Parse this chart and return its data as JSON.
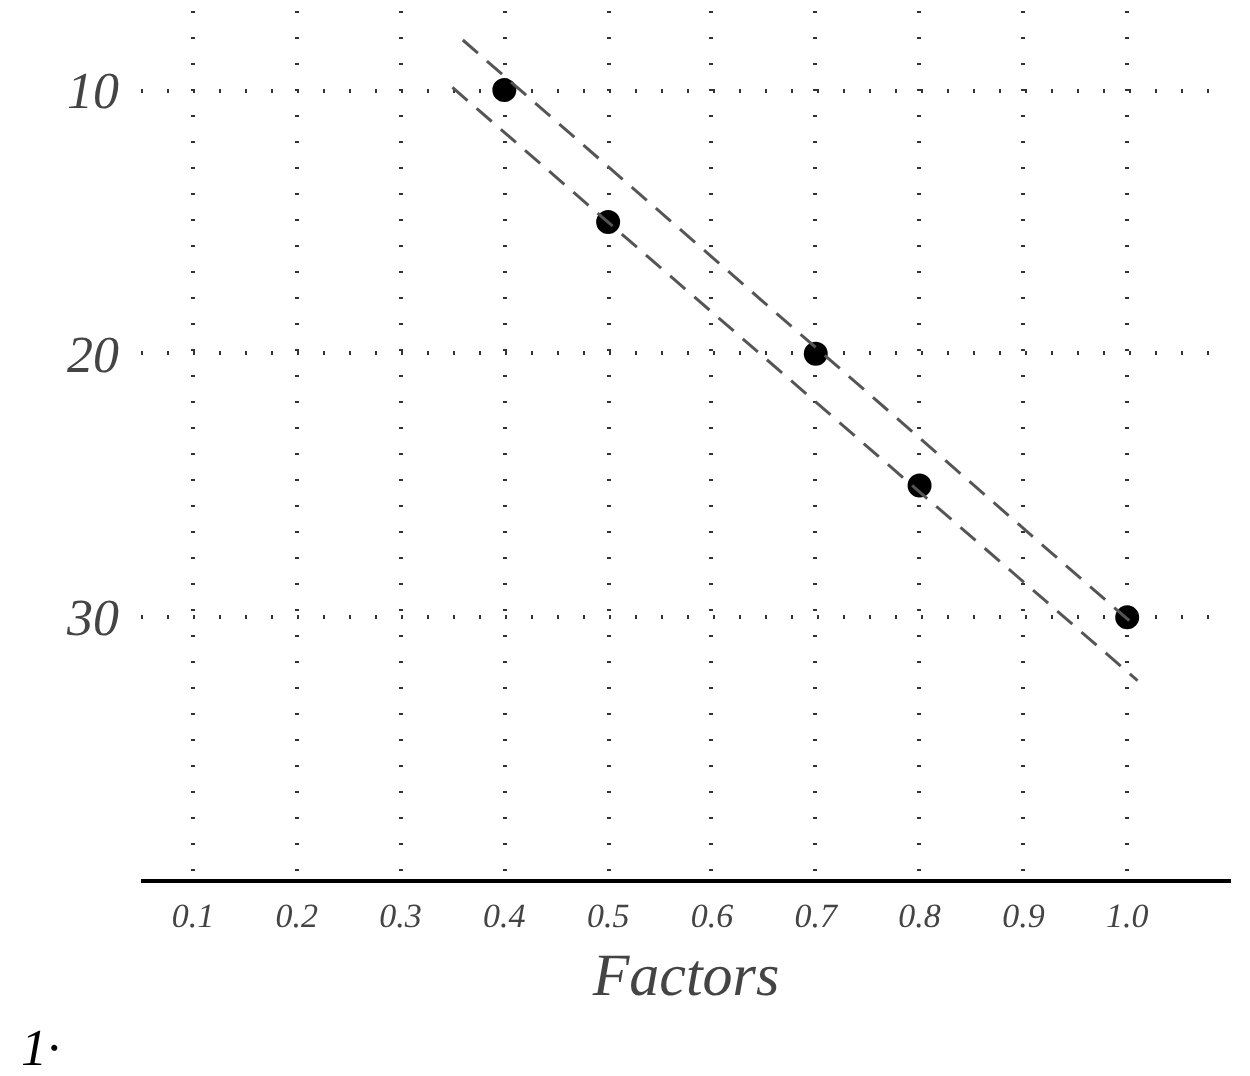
{
  "chart_data": {
    "type": "scatter",
    "xlabel": "Factors",
    "annotations": [
      "1·"
    ],
    "xlim": [
      0.05,
      1.1
    ],
    "ylim": [
      40,
      7
    ],
    "xticks": [
      {
        "value": 0.1,
        "label": "0.1"
      },
      {
        "value": 0.2,
        "label": "0.2"
      },
      {
        "value": 0.3,
        "label": "0.3"
      },
      {
        "value": 0.4,
        "label": "0.4"
      },
      {
        "value": 0.5,
        "label": "0.5"
      },
      {
        "value": 0.6,
        "label": "0.6"
      },
      {
        "value": 0.7,
        "label": "0.7"
      },
      {
        "value": 0.8,
        "label": "0.8"
      },
      {
        "value": 0.9,
        "label": "0.9"
      },
      {
        "value": 1.0,
        "label": "1.0"
      }
    ],
    "yticks": [
      10,
      20,
      30
    ],
    "grid": true,
    "marker": "circle",
    "series": [
      {
        "color": "#000000",
        "x": [
          0.4,
          0.5,
          0.7,
          0.8,
          1.0
        ],
        "values": [
          10,
          15,
          20,
          25,
          30
        ]
      },
      {
        "type": "line",
        "color": "#555555",
        "line_style": "dashed",
        "marker": "none",
        "x": [
          0.36,
          1.01
        ],
        "values": [
          8.1,
          30.4
        ]
      },
      {
        "type": "line",
        "color": "#555555",
        "line_style": "dashed",
        "marker": "none",
        "x": [
          0.35,
          1.01
        ],
        "values": [
          9.9,
          32.4
        ]
      }
    ]
  }
}
